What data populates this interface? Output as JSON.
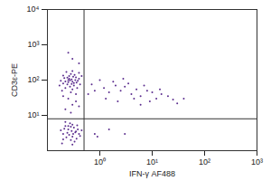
{
  "chart_data": {
    "type": "scatter",
    "x_label": "IFN-γ AF488",
    "y_label": "CD3ε-PE",
    "log": true,
    "color": "#5b2d8e",
    "marker": "dot",
    "xlim": [
      0.1,
      1000
    ],
    "ylim": [
      1,
      10000
    ],
    "xticks": [
      {
        "value": 1,
        "label": "10⁰"
      },
      {
        "value": 10,
        "label": "10¹"
      },
      {
        "value": 100,
        "label": "10²"
      },
      {
        "value": 1000,
        "label": "10³"
      }
    ],
    "yticks": [
      {
        "value": 10,
        "label": "10¹"
      },
      {
        "value": 100,
        "label": "10²"
      },
      {
        "value": 1000,
        "label": "10³"
      },
      {
        "value": 10000,
        "label": "10⁴"
      }
    ],
    "gate_lines": {
      "x": 0.5,
      "y": 8
    },
    "x": [
      0.2,
      0.25,
      0.3,
      0.35,
      0.22,
      0.28,
      0.32,
      0.4,
      0.18,
      0.26,
      0.3,
      0.36,
      0.24,
      0.21,
      0.33,
      0.29,
      0.27,
      0.38,
      0.23,
      0.31,
      0.19,
      0.42,
      0.25,
      0.34,
      0.28,
      0.2,
      0.37,
      0.3,
      0.26,
      0.45,
      0.22,
      0.32,
      0.17,
      0.35,
      0.27,
      0.4,
      0.24,
      0.29,
      0.25,
      0.3,
      0.22,
      0.35,
      0.28,
      0.2,
      0.4,
      0.2,
      0.25,
      0.3,
      0.35,
      0.22,
      0.28,
      0.32,
      0.4,
      0.18,
      0.26,
      0.3,
      0.36,
      0.24,
      0.21,
      0.33,
      0.29,
      0.27,
      0.38,
      0.23,
      0.31,
      0.19,
      0.42,
      0.25,
      0.34,
      0.28,
      0.2,
      0.37,
      0.3,
      0.45,
      0.22,
      1.2,
      1.5,
      2,
      2.5,
      3,
      4,
      5,
      6,
      8,
      10,
      12,
      15,
      20,
      25,
      1.8,
      3.5,
      7,
      1.3,
      2.2,
      4.5,
      9,
      30,
      0.8,
      0.7,
      0.6,
      1,
      6,
      2.8,
      14,
      40,
      1.5,
      3,
      0.8,
      0.9,
      0.3,
      0.25,
      0.4
    ],
    "y": [
      80,
      100,
      90,
      120,
      60,
      150,
      70,
      110,
      95,
      130,
      55,
      85,
      75,
      115,
      140,
      105,
      65,
      95,
      170,
      125,
      50,
      75,
      88,
      100,
      45,
      135,
      60,
      180,
      110,
      130,
      92,
      82,
      70,
      40,
      98,
      160,
      118,
      78,
      30,
      20,
      15,
      25,
      12,
      35,
      18,
      3,
      4,
      2.5,
      3.5,
      5,
      2,
      4.5,
      3,
      3.8,
      2.8,
      5.5,
      2.2,
      3.2,
      4.2,
      1.8,
      3.6,
      6,
      4,
      2.4,
      3,
      1.6,
      2.6,
      5,
      3.3,
      4.8,
      2.1,
      5.2,
      1.5,
      3.8,
      6.5,
      60,
      45,
      70,
      50,
      65,
      40,
      55,
      35,
      50,
      45,
      30,
      40,
      35,
      28,
      90,
      80,
      70,
      30,
      25,
      30,
      25,
      22,
      50,
      75,
      40,
      100,
      20,
      110,
      55,
      30,
      4,
      3,
      3,
      2.5,
      400,
      600,
      300
    ]
  }
}
